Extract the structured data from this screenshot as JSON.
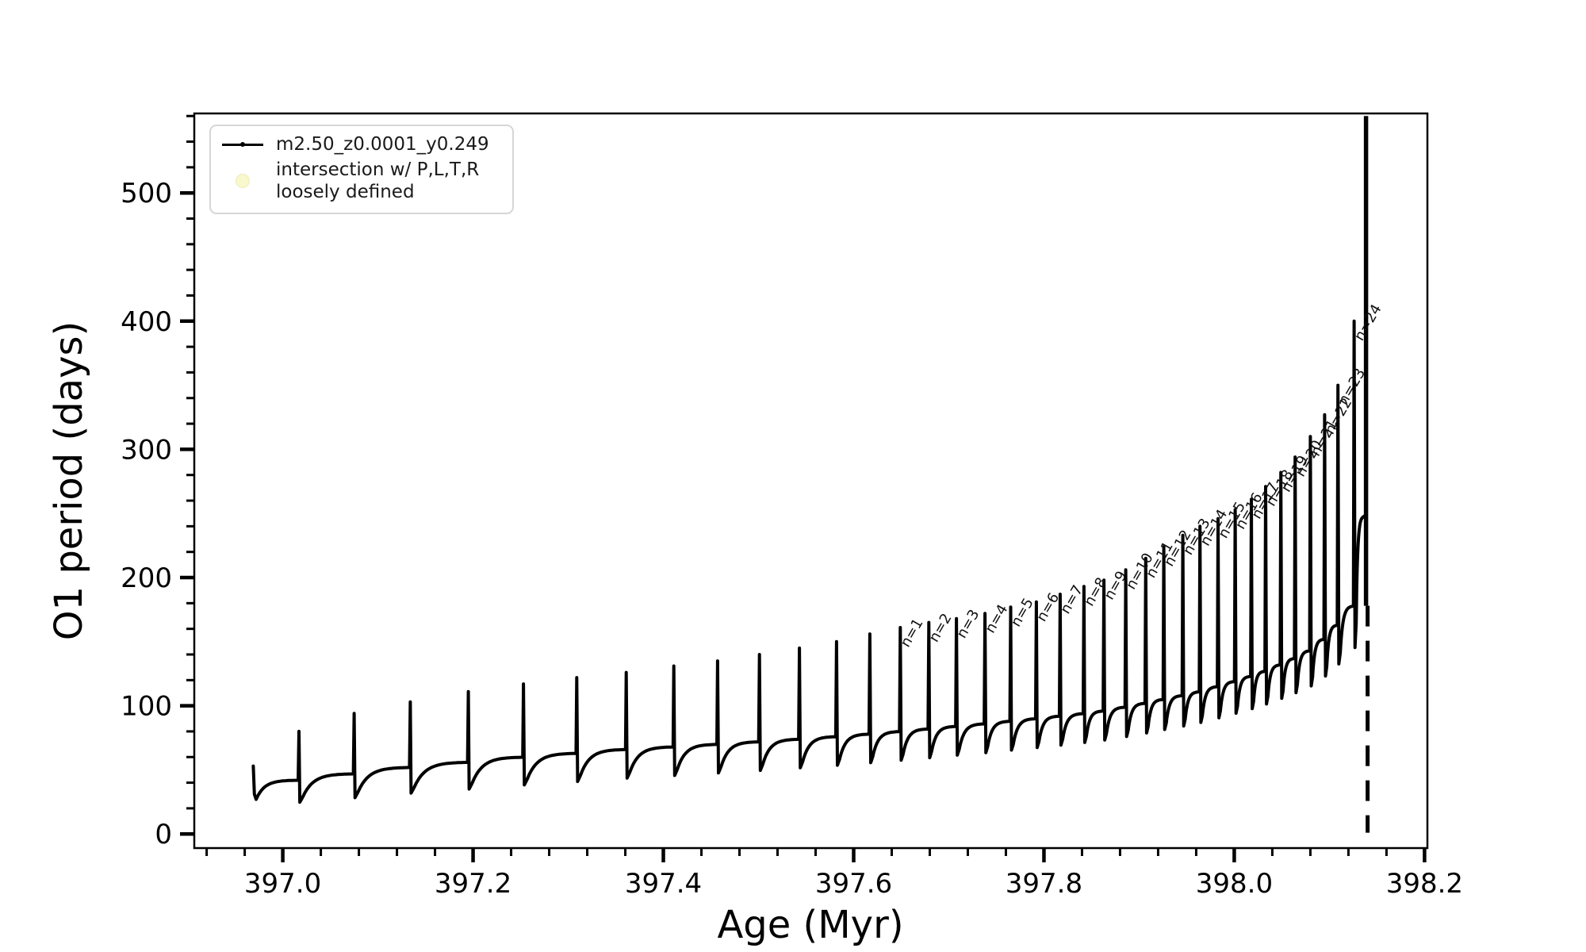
{
  "chart_data": {
    "type": "line",
    "title": "",
    "xlabel": "Age (Myr)",
    "ylabel": "O1 period (days)",
    "xlim": [
      396.907,
      398.203
    ],
    "ylim": [
      -11,
      562
    ],
    "xticks": [
      397.0,
      397.2,
      397.4,
      397.6,
      397.8,
      398.0,
      398.2
    ],
    "yticks": [
      0,
      100,
      200,
      300,
      400,
      500
    ],
    "x_minor_step": 0.04,
    "y_minor_step": 20,
    "grid": "off",
    "series_color": "#000000",
    "intersection_marker_color": "#f8f8cc",
    "legend": {
      "position": "upper-left",
      "series_label": "m2.50_z0.0001_y0.249",
      "intersection_label_line1": "intersection w/ P,L,T,R",
      "intersection_label_line2": "loosely defined"
    },
    "spike_label_prefix": "n=",
    "spike_label_rotation_deg": -60,
    "start_point": {
      "age": 396.969,
      "period": 53,
      "dip": 27
    },
    "teeth": [
      {
        "age": 397.017,
        "peak": 80,
        "base": 42
      },
      {
        "age": 397.075,
        "peak": 94,
        "base": 47
      },
      {
        "age": 397.134,
        "peak": 103,
        "base": 52
      },
      {
        "age": 397.195,
        "peak": 111,
        "base": 56
      },
      {
        "age": 397.253,
        "peak": 117,
        "base": 60
      },
      {
        "age": 397.309,
        "peak": 122,
        "base": 63
      },
      {
        "age": 397.361,
        "peak": 126,
        "base": 66
      },
      {
        "age": 397.411,
        "peak": 131,
        "base": 68
      },
      {
        "age": 397.457,
        "peak": 135,
        "base": 70
      },
      {
        "age": 397.501,
        "peak": 140,
        "base": 72
      },
      {
        "age": 397.543,
        "peak": 145,
        "base": 74
      },
      {
        "age": 397.582,
        "peak": 150,
        "base": 76
      },
      {
        "age": 397.617,
        "peak": 156,
        "base": 78
      },
      {
        "age": 397.649,
        "peak": 161,
        "base": 80,
        "n": 1
      },
      {
        "age": 397.679,
        "peak": 165,
        "base": 82,
        "n": 2
      },
      {
        "age": 397.708,
        "peak": 168,
        "base": 84,
        "n": 3
      },
      {
        "age": 397.738,
        "peak": 172,
        "base": 86,
        "n": 4
      },
      {
        "age": 397.765,
        "peak": 177,
        "base": 88,
        "n": 5
      },
      {
        "age": 397.792,
        "peak": 181,
        "base": 90,
        "n": 6
      },
      {
        "age": 397.817,
        "peak": 187,
        "base": 92,
        "n": 7
      },
      {
        "age": 397.842,
        "peak": 193,
        "base": 94,
        "n": 8
      },
      {
        "age": 397.863,
        "peak": 198,
        "base": 96,
        "n": 9
      },
      {
        "age": 397.886,
        "peak": 206,
        "base": 99,
        "n": 10
      },
      {
        "age": 397.907,
        "peak": 215,
        "base": 102,
        "n": 11
      },
      {
        "age": 397.926,
        "peak": 224,
        "base": 105,
        "n": 12
      },
      {
        "age": 397.946,
        "peak": 233,
        "base": 108,
        "n": 13
      },
      {
        "age": 397.964,
        "peak": 240,
        "base": 111,
        "n": 14
      },
      {
        "age": 397.983,
        "peak": 246,
        "base": 115,
        "n": 15
      },
      {
        "age": 398.001,
        "peak": 253,
        "base": 119,
        "n": 16
      },
      {
        "age": 398.018,
        "peak": 261,
        "base": 123,
        "n": 17
      },
      {
        "age": 398.033,
        "peak": 271,
        "base": 127,
        "n": 18
      },
      {
        "age": 398.049,
        "peak": 282,
        "base": 132,
        "n": 19
      },
      {
        "age": 398.064,
        "peak": 294,
        "base": 137,
        "n": 20
      },
      {
        "age": 398.08,
        "peak": 310,
        "base": 143,
        "n": 21
      },
      {
        "age": 398.095,
        "peak": 327,
        "base": 152,
        "n": 22
      },
      {
        "age": 398.109,
        "peak": 350,
        "base": 163,
        "n": 23
      },
      {
        "age": 398.126,
        "peak": 400,
        "base": 178,
        "n": 24
      }
    ],
    "final_base": {
      "age": 398.1368,
      "period": 248
    },
    "terminal_event": {
      "age": 398.1385,
      "top": 560,
      "solid_bottom": 178,
      "dashed_bottom": 1,
      "dashed": true
    }
  }
}
